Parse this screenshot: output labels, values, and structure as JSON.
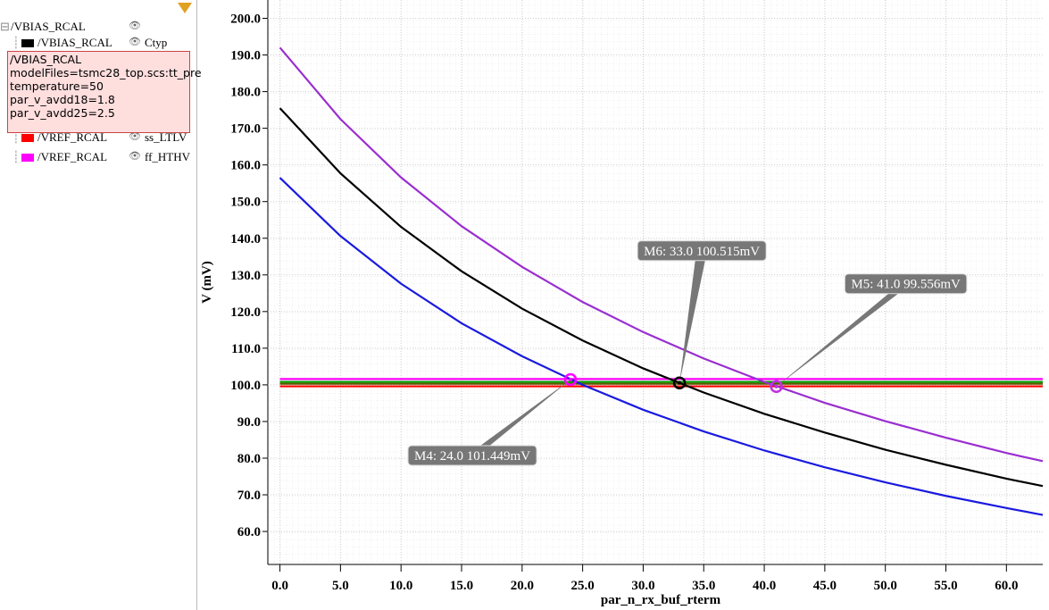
{
  "panel": {
    "group": "/VBIAS_RCAL",
    "rows": [
      {
        "signal": "/VBIAS_RCAL",
        "corner": "Ctyp",
        "color": "#000000"
      },
      {
        "signal": "/VREF_RCAL",
        "corner": "ss_LTLV",
        "color": "#ff0000"
      },
      {
        "signal": "/VREF_RCAL",
        "corner": "ff_HTHV",
        "color": "#ff00ff"
      }
    ],
    "tooltip": [
      "/VBIAS_RCAL",
      "modelFiles=tsmc28_top.scs:tt_pre",
      "temperature=50",
      "par_v_avdd18=1.8",
      "par_v_avdd25=2.5"
    ]
  },
  "chart_data": {
    "type": "line",
    "xlabel": "par_n_rx_buf_rterm",
    "ylabel": "V (mV)",
    "xlim": [
      -1,
      63
    ],
    "ylim": [
      51,
      205
    ],
    "xticks": [
      {
        "value": 0,
        "label": "0.0"
      },
      {
        "value": 5,
        "label": "5.0"
      },
      {
        "value": 10,
        "label": "10.0"
      },
      {
        "value": 15,
        "label": "15.0"
      },
      {
        "value": 20,
        "label": "20.0"
      },
      {
        "value": 25,
        "label": "25.0"
      },
      {
        "value": 30,
        "label": "30.0"
      },
      {
        "value": 35,
        "label": "35.0"
      },
      {
        "value": 40,
        "label": "40.0"
      },
      {
        "value": 45,
        "label": "45.0"
      },
      {
        "value": 50,
        "label": "50.0"
      },
      {
        "value": 55,
        "label": "55.0"
      },
      {
        "value": 60,
        "label": "60.0"
      }
    ],
    "yticks": [
      {
        "value": 60,
        "label": "60.0"
      },
      {
        "value": 70,
        "label": "70.0"
      },
      {
        "value": 80,
        "label": "80.0"
      },
      {
        "value": 90,
        "label": "90.0"
      },
      {
        "value": 100,
        "label": "100.0"
      },
      {
        "value": 110,
        "label": "110.0"
      },
      {
        "value": 120,
        "label": "120.0"
      },
      {
        "value": 130,
        "label": "130.0"
      },
      {
        "value": 140,
        "label": "140.0"
      },
      {
        "value": 150,
        "label": "150.0"
      },
      {
        "value": 160,
        "label": "160.0"
      },
      {
        "value": 170,
        "label": "170.0"
      },
      {
        "value": 180,
        "label": "180.0"
      },
      {
        "value": 190,
        "label": "190.0"
      },
      {
        "value": 200,
        "label": "200.0"
      }
    ],
    "grid": true,
    "series": [
      {
        "color": "#00a000",
        "x": [
          0,
          63
        ],
        "values": [
          100.8,
          100.8
        ]
      },
      {
        "color": "#5a5a00",
        "x": [
          0,
          63
        ],
        "values": [
          100.3,
          100.3
        ]
      },
      {
        "color": "#ff0000",
        "x": [
          0,
          63
        ],
        "values": [
          99.6,
          99.6
        ]
      },
      {
        "color": "#ff00ff",
        "x": [
          0,
          63
        ],
        "values": [
          101.6,
          101.6
        ]
      },
      {
        "color": "#1a1ae0",
        "x": [
          0,
          5,
          10,
          15,
          20,
          25,
          30,
          35,
          40,
          45,
          50,
          55,
          60,
          63
        ],
        "values": [
          156.5,
          140.6,
          127.6,
          116.8,
          107.8,
          100.0,
          93.2,
          87.3,
          82.1,
          77.5,
          73.4,
          69.7,
          66.4,
          64.5
        ]
      },
      {
        "color": "#000000",
        "x": [
          0,
          5,
          10,
          15,
          20,
          25,
          30,
          35,
          40,
          45,
          50,
          55,
          60,
          63
        ],
        "values": [
          175.5,
          157.7,
          143.1,
          131.0,
          120.8,
          112.1,
          104.5,
          97.9,
          92.1,
          87.0,
          82.3,
          78.2,
          74.4,
          72.4
        ]
      },
      {
        "color": "#9a2ed0",
        "x": [
          0,
          5,
          10,
          15,
          20,
          25,
          30,
          35,
          40,
          45,
          50,
          55,
          60,
          63
        ],
        "values": [
          192.0,
          172.5,
          156.6,
          143.3,
          132.2,
          122.6,
          114.4,
          107.2,
          100.8,
          95.1,
          90.1,
          85.6,
          81.4,
          79.2
        ]
      }
    ],
    "markers": [
      {
        "label": "M4: 24.0 101.449mV",
        "x": 24.0,
        "y": 101.449,
        "color": "#ff00ff"
      },
      {
        "label": "M5: 41.0 99.556mV",
        "x": 41.0,
        "y": 99.556,
        "color": "#c030e0"
      },
      {
        "label": "M6: 33.0 100.515mV",
        "x": 33.0,
        "y": 100.515,
        "color": "#000000"
      }
    ]
  }
}
